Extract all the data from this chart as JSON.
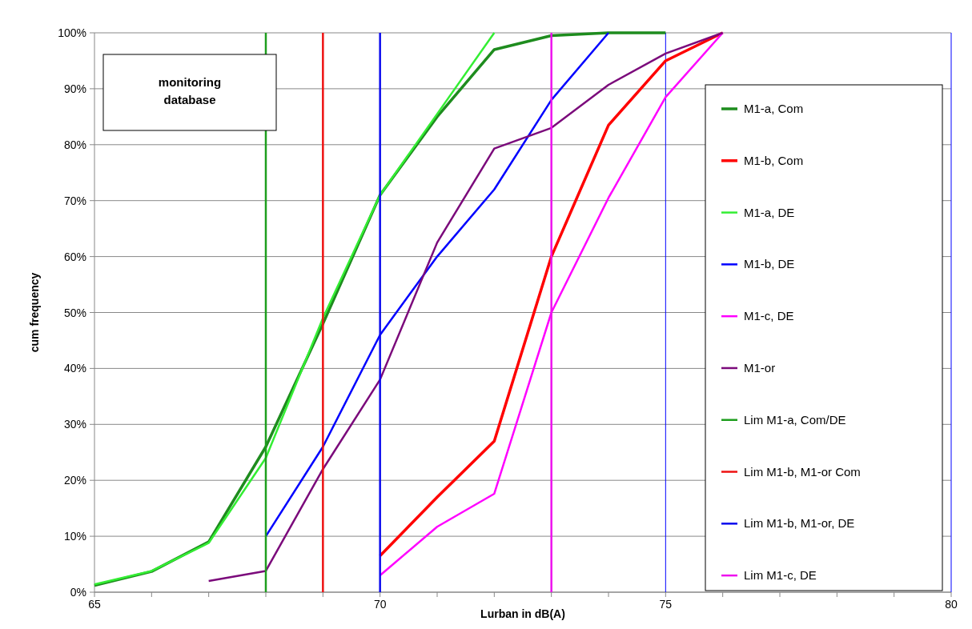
{
  "chart_data": {
    "type": "line",
    "xlabel": "Lurban in dB(A)",
    "ylabel": "cum frequency",
    "annotations": [
      "monitoring database"
    ],
    "xlim": [
      65,
      80
    ],
    "xticks": [
      65,
      {
        "value": 66,
        "label": null
      },
      {
        "value": 67,
        "label": null
      },
      {
        "value": 68,
        "label": null
      },
      {
        "value": 69,
        "label": null
      },
      70,
      {
        "value": 71,
        "label": null
      },
      {
        "value": 72,
        "label": null
      },
      {
        "value": 73,
        "label": null
      },
      {
        "value": 74,
        "label": null
      },
      75,
      {
        "value": 76,
        "label": null
      },
      {
        "value": 77,
        "label": null
      },
      {
        "value": 78,
        "label": null
      },
      {
        "value": 79,
        "label": null
      },
      80
    ],
    "ylim": [
      0,
      100
    ],
    "yticks": [
      {
        "value": 0,
        "label": "0%"
      },
      {
        "value": 10,
        "label": "10%"
      },
      {
        "value": 20,
        "label": "20%"
      },
      {
        "value": 30,
        "label": "30%"
      },
      {
        "value": 40,
        "label": "40%"
      },
      {
        "value": 50,
        "label": "50%"
      },
      {
        "value": 60,
        "label": "60%"
      },
      {
        "value": 70,
        "label": "70%"
      },
      {
        "value": 80,
        "label": "80%"
      },
      {
        "value": 90,
        "label": "90%"
      },
      {
        "value": 100,
        "label": "100%"
      }
    ],
    "grid": "y",
    "legend": "right",
    "marker": "none",
    "line_style": "solid",
    "ref_lines": [
      {
        "axis": "x",
        "value": 75,
        "color": "#0000ff"
      },
      {
        "axis": "x",
        "value": 80,
        "color": "#0000ff"
      }
    ],
    "series": [
      {
        "name": "M1-a, Com",
        "color": "#1e8c1e",
        "x": [
          65,
          66,
          67,
          68,
          69,
          70,
          71,
          72,
          73,
          74,
          75
        ],
        "values": [
          1.2,
          3.7,
          9,
          26,
          48,
          71,
          85,
          97,
          99.5,
          100,
          100
        ]
      },
      {
        "name": "M1-b, Com",
        "color": "#ff0000",
        "x": [
          70,
          71,
          72,
          73,
          74,
          75,
          76
        ],
        "values": [
          6.5,
          17,
          27,
          60,
          83.5,
          95,
          100
        ]
      },
      {
        "name": "M1-a, DE",
        "color": "#33ee33",
        "x": [
          65,
          66,
          67,
          68,
          69,
          70,
          71,
          72
        ],
        "values": [
          1.4,
          3.8,
          8.8,
          24,
          49,
          71,
          85.5,
          100
        ]
      },
      {
        "name": "M1-b, DE",
        "color": "#0000ff",
        "x": [
          68,
          69,
          70,
          71,
          72,
          73,
          74
        ],
        "values": [
          10,
          26,
          46,
          60,
          72,
          88,
          100
        ]
      },
      {
        "name": "M1-c, DE",
        "color": "#ff00ff",
        "x": [
          70,
          71,
          72,
          73,
          74,
          75,
          76
        ],
        "values": [
          3,
          11.7,
          17.6,
          50,
          70.5,
          88.5,
          100
        ]
      },
      {
        "name": "M1-or",
        "color": "#7b0a7b",
        "x": [
          67,
          68,
          69,
          70,
          71,
          72,
          73,
          74,
          75,
          76
        ],
        "values": [
          2,
          3.8,
          22,
          38,
          62.5,
          79.3,
          83,
          90.7,
          96.3,
          100
        ]
      },
      {
        "name": "Lim M1-a, Com/DE",
        "color": "#1e9e1e",
        "x": [
          68,
          68
        ],
        "values": [
          0,
          100
        ]
      },
      {
        "name": "Lim M1-b, M1-or Com",
        "color": "#ee1111",
        "x": [
          69,
          69
        ],
        "values": [
          0,
          100
        ]
      },
      {
        "name": "Lim M1-b, M1-or, DE",
        "color": "#0a0aee",
        "x": [
          70,
          70
        ],
        "values": [
          0,
          100
        ]
      },
      {
        "name": "Lim M1-c, DE",
        "color": "#ee11ee",
        "x": [
          73,
          73
        ],
        "values": [
          0,
          100
        ]
      }
    ]
  }
}
